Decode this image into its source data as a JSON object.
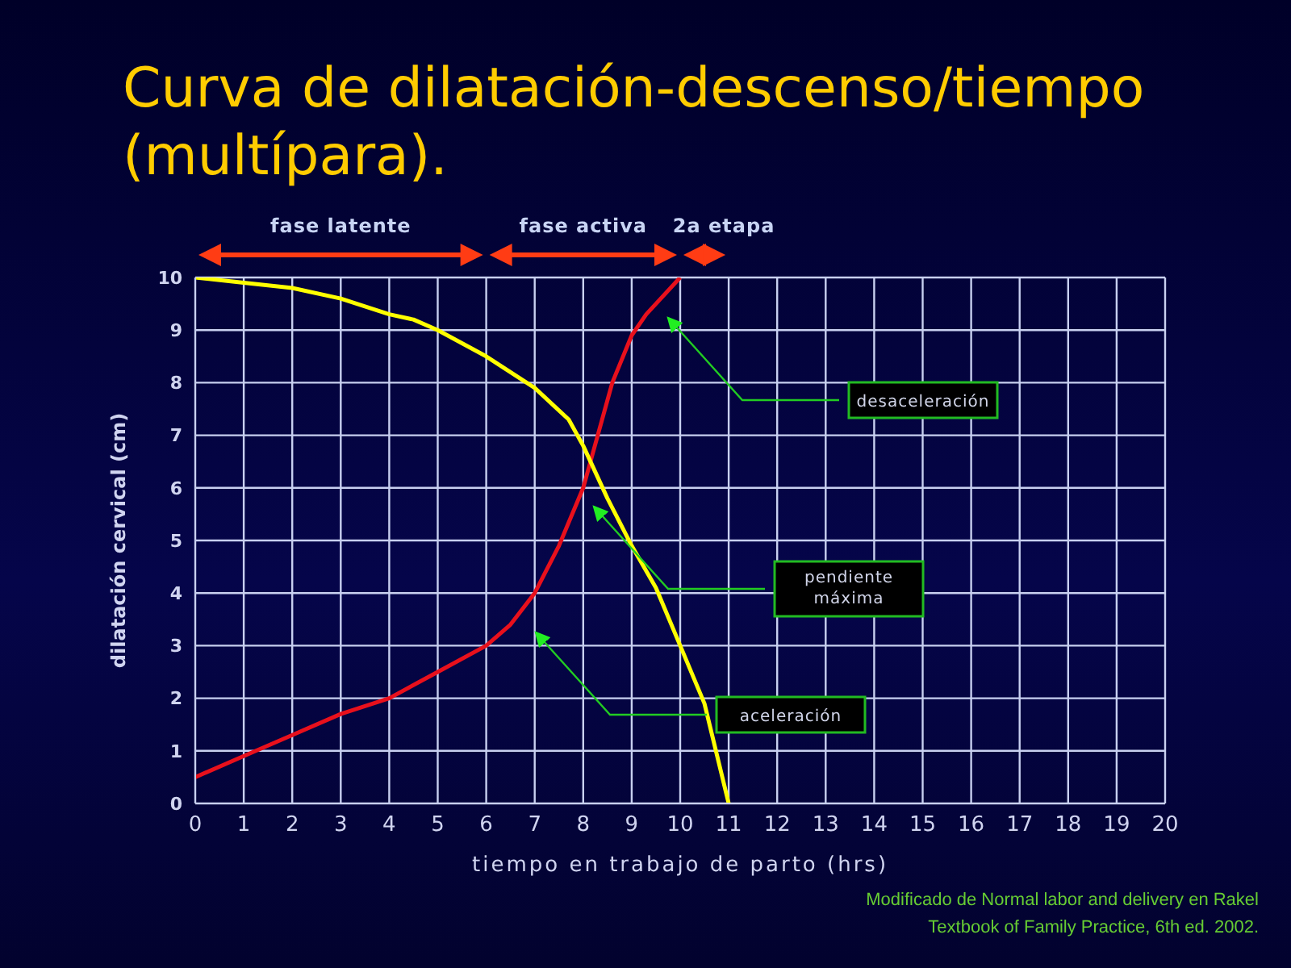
{
  "chart_data": {
    "type": "line",
    "title": "Curva de dilatación-descenso/tiempo (multípara).",
    "xlabel": "tiempo en trabajo de parto (hrs)",
    "ylabel": "dilatación cervical (cm)",
    "series": [
      {
        "color": "#e8101c",
        "x": [
          0,
          1,
          2,
          3,
          4,
          5,
          6,
          6.5,
          7,
          7.5,
          8,
          8.3,
          8.6,
          9,
          9.3,
          10
        ],
        "values": [
          0.5,
          0.9,
          1.3,
          1.7,
          2,
          2.5,
          3,
          3.4,
          4,
          4.9,
          6,
          7,
          8,
          8.9,
          9.3,
          10
        ]
      },
      {
        "color": "#ffff00",
        "x": [
          0,
          1,
          2,
          3,
          4,
          4.5,
          5,
          6,
          7,
          7.7,
          8,
          8.5,
          9,
          9.5,
          10,
          10.5,
          11
        ],
        "values": [
          10,
          9.9,
          9.8,
          9.6,
          9.3,
          9.2,
          9,
          8.5,
          7.9,
          7.3,
          6.8,
          5.8,
          4.9,
          4.1,
          3,
          1.9,
          0
        ]
      }
    ],
    "xlim": [
      0,
      20
    ],
    "xticks": [
      0,
      1,
      2,
      3,
      4,
      5,
      6,
      7,
      8,
      9,
      10,
      11,
      12,
      13,
      14,
      15,
      16,
      17,
      18,
      19,
      20
    ],
    "ylim": [
      0,
      10
    ],
    "yticks": [
      0,
      1,
      2,
      3,
      4,
      5,
      6,
      7,
      8,
      9,
      10
    ],
    "grid": true,
    "legend": false,
    "marker": "none",
    "line_style": "solid",
    "annotations": [
      "fase latente",
      "fase activa",
      "2a etapa",
      "desaceleración",
      "pendiente máxima",
      "aceleración",
      "Modificado de Normal labor and delivery en Rakel Textbook of Family Practice, 6th ed. 2002."
    ]
  }
}
